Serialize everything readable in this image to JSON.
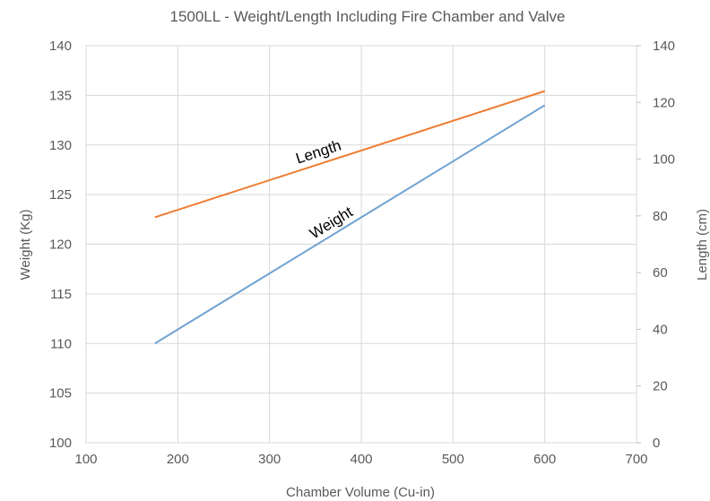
{
  "chart_data": {
    "type": "line",
    "title": "1500LL - Weight/Length Including Fire Chamber and Valve",
    "xlabel": "Chamber Volume (Cu-in)",
    "ylabel": "Weight (Kg)",
    "y2label": "Length (cm)",
    "xlim": [
      100,
      700
    ],
    "ylim": [
      100,
      140
    ],
    "y2lim": [
      0,
      140
    ],
    "x_ticks": [
      100,
      200,
      300,
      400,
      500,
      600,
      700
    ],
    "y_ticks": [
      100,
      105,
      110,
      115,
      120,
      125,
      130,
      135,
      140
    ],
    "y2_ticks": [
      0,
      20,
      40,
      60,
      80,
      100,
      120,
      140
    ],
    "grid": true,
    "legend": "none",
    "series": [
      {
        "name": "Weight",
        "axis": "left",
        "color": "#6fa2d1",
        "x": [
          175,
          600
        ],
        "values": [
          110,
          134
        ]
      },
      {
        "name": "Length",
        "axis": "right",
        "color": "#ed7d31",
        "x": [
          175,
          600
        ],
        "values": [
          79.5,
          124
        ]
      }
    ]
  }
}
